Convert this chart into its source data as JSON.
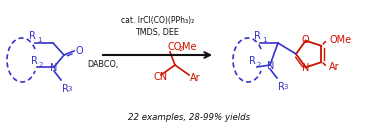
{
  "bg_color": "#ffffff",
  "blue_color": "#3333cc",
  "red_color": "#cc1100",
  "black_color": "#111111",
  "conditions_line1": "cat. IrCl(CO)(PPh₃)₂",
  "conditions_line2": "TMDS, DEE",
  "conditions_line3": "DABCO,",
  "bottom_text": "22 examples, 28-99% yields",
  "figsize": [
    3.78,
    1.27
  ],
  "dpi": 100
}
